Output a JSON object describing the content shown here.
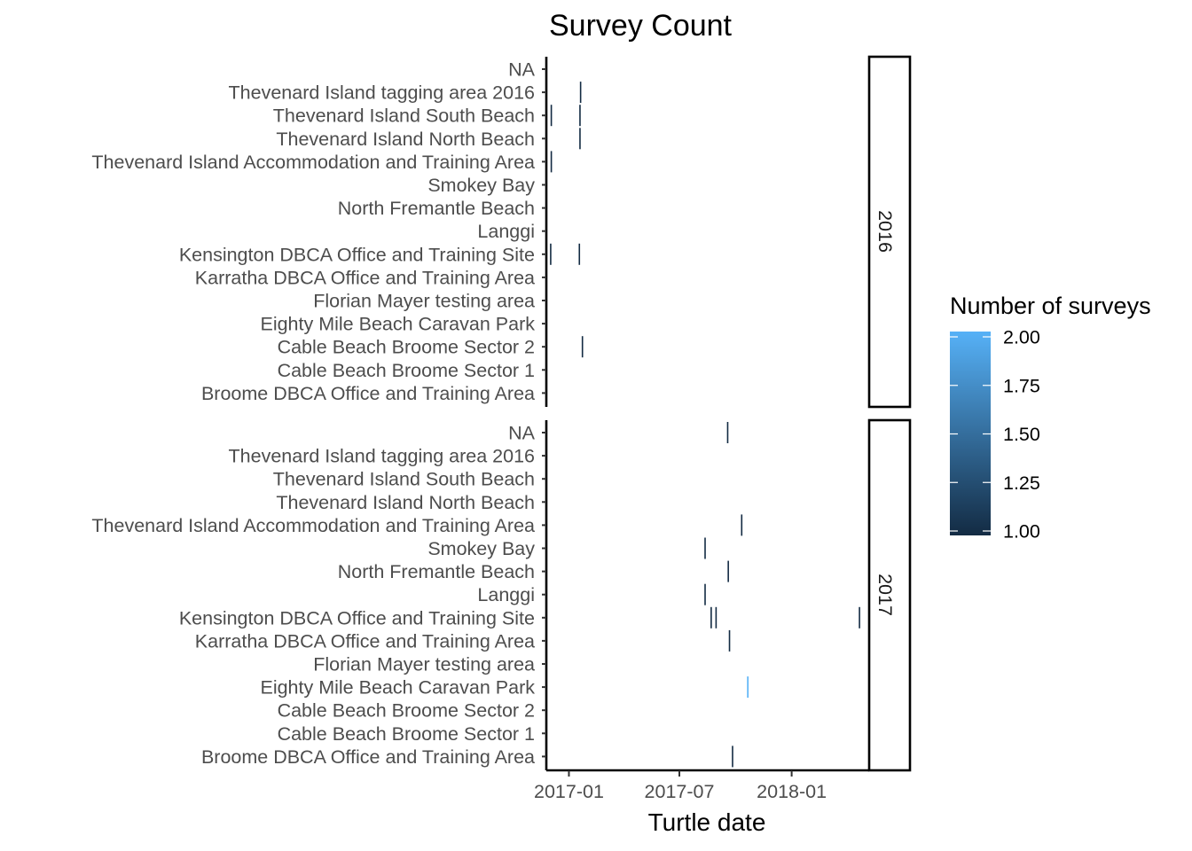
{
  "chart_data": {
    "type": "heatmap",
    "title": "Survey Count",
    "xlabel": "Turtle date",
    "ylabel": "",
    "x_ticks": [
      "2017-01",
      "2017-07",
      "2018-01"
    ],
    "x_tick_dates": [
      "2017-01-01",
      "2017-07-01",
      "2018-01-01"
    ],
    "xlim": [
      "2016-11-25",
      "2018-05-08"
    ],
    "sites": [
      "NA",
      "Thevenard Island tagging area 2016",
      "Thevenard Island South Beach",
      "Thevenard Island North Beach",
      "Thevenard Island Accommodation and Training Area",
      "Smokey Bay",
      "North Fremantle Beach",
      "Langgi",
      "Kensington DBCA Office and Training Site",
      "Karratha DBCA Office and Training Area",
      "Florian Mayer testing area",
      "Eighty Mile Beach Caravan Park",
      "Cable Beach Broome Sector 2",
      "Cable Beach Broome Sector 1",
      "Broome DBCA Office and Training Area"
    ],
    "facets": [
      {
        "label": "2016",
        "cells": [
          {
            "site": "Thevenard Island tagging area 2016",
            "date": "2017-01-20",
            "count": 1
          },
          {
            "site": "Thevenard Island South Beach",
            "date": "2016-12-03",
            "count": 1
          },
          {
            "site": "Thevenard Island South Beach",
            "date": "2017-01-19",
            "count": 1
          },
          {
            "site": "Thevenard Island North Beach",
            "date": "2017-01-19",
            "count": 1
          },
          {
            "site": "Thevenard Island Accommodation and Training Area",
            "date": "2016-12-03",
            "count": 1
          },
          {
            "site": "Kensington DBCA Office and Training Site",
            "date": "2016-12-02",
            "count": 1
          },
          {
            "site": "Kensington DBCA Office and Training Site",
            "date": "2017-01-18",
            "count": 1
          },
          {
            "site": "Cable Beach Broome Sector 2",
            "date": "2017-01-23",
            "count": 1
          }
        ]
      },
      {
        "label": "2017",
        "cells": [
          {
            "site": "NA",
            "date": "2017-09-18",
            "count": 1
          },
          {
            "site": "Thevenard Island Accommodation and Training Area",
            "date": "2017-10-11",
            "count": 1
          },
          {
            "site": "Smokey Bay",
            "date": "2017-08-12",
            "count": 1
          },
          {
            "site": "North Fremantle Beach",
            "date": "2017-09-19",
            "count": 1
          },
          {
            "site": "Langgi",
            "date": "2017-08-12",
            "count": 1
          },
          {
            "site": "Kensington DBCA Office and Training Site",
            "date": "2017-08-22",
            "count": 1
          },
          {
            "site": "Kensington DBCA Office and Training Site",
            "date": "2017-08-30",
            "count": 1
          },
          {
            "site": "Kensington DBCA Office and Training Site",
            "date": "2018-04-22",
            "count": 1
          },
          {
            "site": "Karratha DBCA Office and Training Area",
            "date": "2017-09-21",
            "count": 1
          },
          {
            "site": "Eighty Mile Beach Caravan Park",
            "date": "2017-10-21",
            "count": 2
          },
          {
            "site": "Broome DBCA Office and Training Area",
            "date": "2017-09-26",
            "count": 1
          }
        ]
      }
    ],
    "legend": {
      "title": "Number of surveys",
      "ticks": [
        "2.00",
        "1.75",
        "1.50",
        "1.25",
        "1.00"
      ],
      "min": 1,
      "max": 2,
      "low_color": "#132B43",
      "high_color": "#56B1F7",
      "position": "right"
    },
    "grid": false
  }
}
